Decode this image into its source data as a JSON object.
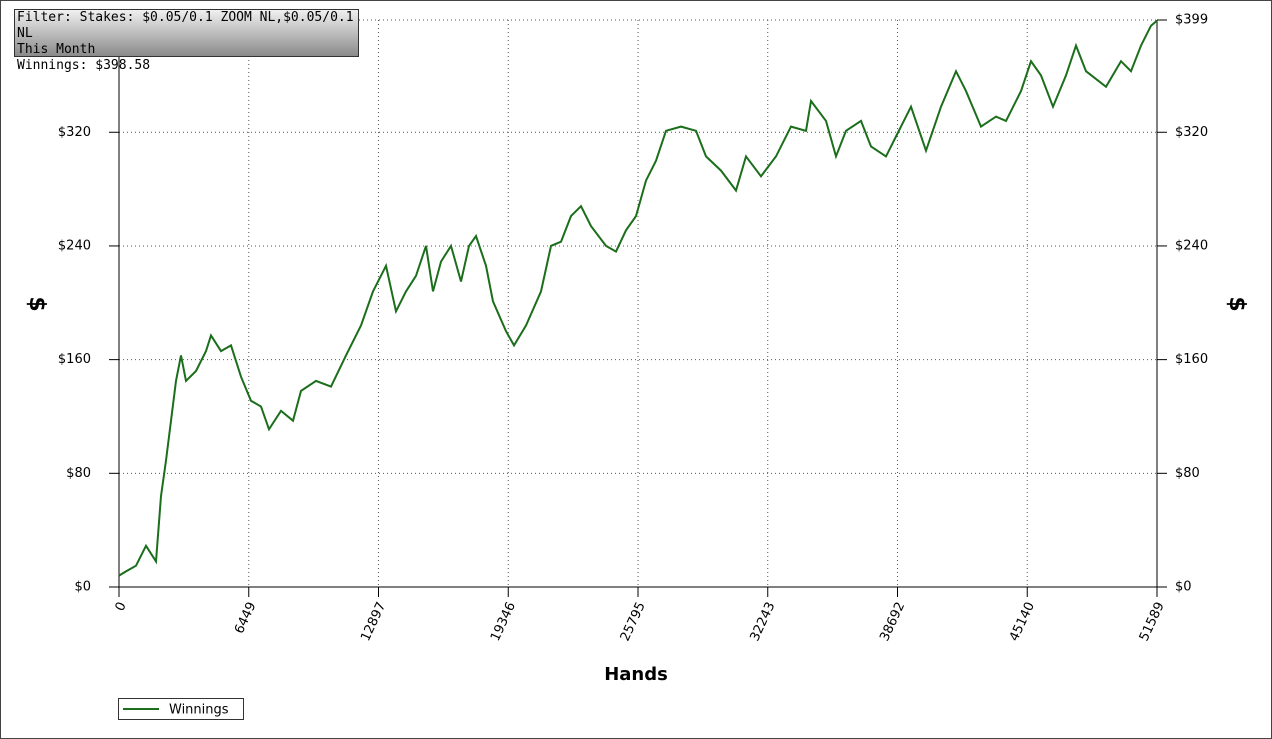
{
  "chart_data": {
    "type": "line",
    "filter_lines": [
      "Filter: Stakes: $0.05/0.1 ZOOM NL,$0.05/0.1 NL",
      "This Month",
      "Winnings: $398.58"
    ],
    "xlabel": "Hands",
    "ylabel": "$",
    "x": [
      0,
      348,
      845,
      1342,
      1839,
      2087,
      2336,
      2584,
      2833,
      3081,
      3330,
      3827,
      4324,
      4572,
      5069,
      5566,
      6063,
      6560,
      7058,
      7455,
      8052,
      8648,
      9046,
      9791,
      10537,
      11282,
      12028,
      12624,
      13270,
      13767,
      14264,
      14761,
      15258,
      15606,
      16003,
      16500,
      16997,
      17395,
      17743,
      18240,
      18588,
      19234,
      19631,
      20228,
      20973,
      21470,
      21967,
      22464,
      22961,
      23458,
      24203,
      24700,
      25197,
      25694,
      26191,
      26688,
      27185,
      27931,
      28676,
      29173,
      29918,
      30664,
      31161,
      31906,
      32652,
      33397,
      34143,
      34391,
      35137,
      35634,
      36131,
      36876,
      37373,
      38119,
      38616,
      39362,
      40107,
      40853,
      41598,
      42095,
      42841,
      43586,
      44083,
      44828,
      45325,
      45822,
      46419,
      47065,
      47562,
      48059,
      49053,
      49799,
      50296,
      50793,
      51291,
      51589
    ],
    "series": [
      {
        "name": "Winnings",
        "color": "#1b6e1b",
        "values": [
          8,
          11,
          15,
          29,
          18,
          64,
          89,
          117,
          145,
          163,
          145,
          152,
          166,
          177,
          166,
          170,
          148,
          131,
          127,
          111,
          124,
          117,
          138,
          145,
          141,
          163,
          184,
          208,
          226,
          194,
          208,
          219,
          240,
          208,
          229,
          240,
          215,
          240,
          247,
          226,
          201,
          180,
          170,
          184,
          208,
          240,
          243,
          261,
          268,
          254,
          240,
          236,
          251,
          261,
          286,
          300,
          321,
          324,
          321,
          303,
          293,
          279,
          303,
          289,
          303,
          324,
          321,
          342,
          328,
          303,
          321,
          328,
          310,
          303,
          317,
          338,
          307,
          338,
          363,
          349,
          324,
          331,
          328,
          349,
          370,
          360,
          338,
          360,
          381,
          363,
          352,
          370,
          363,
          381,
          395,
          398.58
        ]
      }
    ],
    "xlim": [
      0,
      51589
    ],
    "xticks": [
      0,
      6449,
      12897,
      19346,
      25795,
      32243,
      38692,
      45140,
      51589
    ],
    "ylim": [
      0,
      399
    ],
    "yticks": [
      {
        "value": 0,
        "label": "$0"
      },
      {
        "value": 80,
        "label": "$80"
      },
      {
        "value": 160,
        "label": "$160"
      },
      {
        "value": 240,
        "label": "$240"
      },
      {
        "value": 320,
        "label": "$320"
      },
      {
        "value": 399,
        "label": "$399"
      }
    ],
    "grid": true
  }
}
